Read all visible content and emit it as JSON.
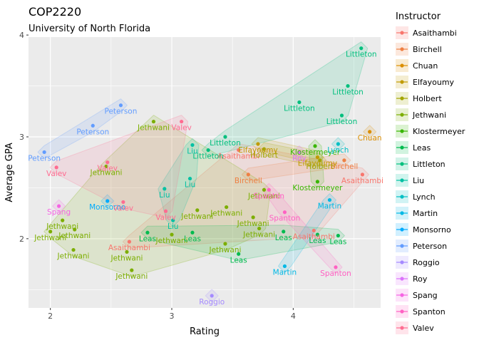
{
  "chart_data": {
    "type": "scatter",
    "title": "COP2220",
    "subtitle": "University of North Florida",
    "xlabel": "Rating",
    "ylabel": "Average GPA",
    "xlim": [
      1.82,
      4.72
    ],
    "ylim": [
      1.32,
      3.98
    ],
    "x_ticks": [
      2,
      3,
      4
    ],
    "y_ticks": [
      2,
      3,
      4
    ],
    "grid": true,
    "legend_title": "Instructor",
    "legend_position": "right",
    "series": [
      {
        "name": "Asaithambi",
        "color": "#F8766D",
        "points": [
          [
            2.65,
            1.97
          ],
          [
            3.55,
            2.87
          ],
          [
            4.17,
            2.08
          ],
          [
            4.57,
            2.63
          ]
        ]
      },
      {
        "name": "Birchell",
        "color": "#EE8043",
        "points": [
          [
            3.63,
            2.63
          ],
          [
            4.42,
            2.77
          ]
        ]
      },
      {
        "name": "Chuan",
        "color": "#DB8E00",
        "points": [
          [
            4.63,
            3.05
          ]
        ]
      },
      {
        "name": "Elfayoumy",
        "color": "#C09B00",
        "points": [
          [
            4.2,
            2.8
          ],
          [
            3.71,
            2.93
          ]
        ]
      },
      {
        "name": "Holbert",
        "color": "#A3A500",
        "points": [
          [
            3.76,
            2.88
          ],
          [
            4.22,
            2.77
          ]
        ]
      },
      {
        "name": "Jethwani",
        "color": "#7CAE00",
        "points": [
          [
            2.1,
            2.18
          ],
          [
            2.0,
            2.07
          ],
          [
            2.2,
            2.09
          ],
          [
            2.19,
            1.89
          ],
          [
            2.46,
            2.71
          ],
          [
            2.63,
            1.87
          ],
          [
            2.67,
            1.69
          ],
          [
            2.85,
            3.15
          ],
          [
            3.0,
            2.04
          ],
          [
            3.21,
            2.28
          ],
          [
            3.45,
            2.31
          ],
          [
            3.44,
            1.95
          ],
          [
            3.72,
            2.1
          ],
          [
            3.76,
            2.48
          ],
          [
            3.67,
            2.21
          ]
        ]
      },
      {
        "name": "Klostermeyer",
        "color": "#39B600",
        "points": [
          [
            4.18,
            2.91
          ],
          [
            4.2,
            2.56
          ]
        ]
      },
      {
        "name": "Leas",
        "color": "#00BB4E",
        "points": [
          [
            2.8,
            2.06
          ],
          [
            3.17,
            2.06
          ],
          [
            3.55,
            1.85
          ],
          [
            3.92,
            2.07
          ],
          [
            4.2,
            2.04
          ],
          [
            4.37,
            2.03
          ]
        ]
      },
      {
        "name": "Littleton",
        "color": "#00BF7D",
        "points": [
          [
            3.44,
            3.0
          ],
          [
            3.3,
            2.87
          ],
          [
            4.05,
            3.34
          ],
          [
            4.45,
            3.5
          ],
          [
            4.4,
            3.21
          ],
          [
            4.56,
            3.87
          ]
        ]
      },
      {
        "name": "Liu",
        "color": "#00C1A3",
        "points": [
          [
            2.94,
            2.49
          ],
          [
            3.15,
            2.59
          ],
          [
            3.17,
            2.92
          ],
          [
            3.01,
            2.18
          ]
        ]
      },
      {
        "name": "Lynch",
        "color": "#00BFC4",
        "points": [
          [
            4.37,
            2.93
          ]
        ]
      },
      {
        "name": "Martin",
        "color": "#00B8E5",
        "points": [
          [
            4.3,
            2.38
          ],
          [
            3.93,
            1.73
          ]
        ]
      },
      {
        "name": "Monsorno",
        "color": "#00ABFD",
        "points": [
          [
            2.47,
            2.37
          ]
        ]
      },
      {
        "name": "Peterson",
        "color": "#619CFF",
        "points": [
          [
            1.95,
            2.85
          ],
          [
            2.35,
            3.11
          ],
          [
            2.58,
            3.31
          ]
        ]
      },
      {
        "name": "Roggio",
        "color": "#A58AFF",
        "points": [
          [
            3.33,
            1.44
          ]
        ]
      },
      {
        "name": "Roy",
        "color": "#DB72FB",
        "points": [
          [
            4.05,
            2.85
          ]
        ]
      },
      {
        "name": "Spang",
        "color": "#F564E3",
        "points": [
          [
            2.07,
            2.32
          ]
        ]
      },
      {
        "name": "Spanton",
        "color": "#FF61C3",
        "points": [
          [
            3.93,
            2.26
          ],
          [
            3.8,
            2.48
          ],
          [
            4.35,
            1.72
          ]
        ]
      },
      {
        "name": "Valev",
        "color": "#FF6C91",
        "points": [
          [
            2.05,
            2.7
          ],
          [
            2.47,
            2.75
          ],
          [
            2.6,
            2.36
          ],
          [
            3.08,
            3.15
          ],
          [
            2.95,
            2.27
          ]
        ]
      }
    ]
  }
}
